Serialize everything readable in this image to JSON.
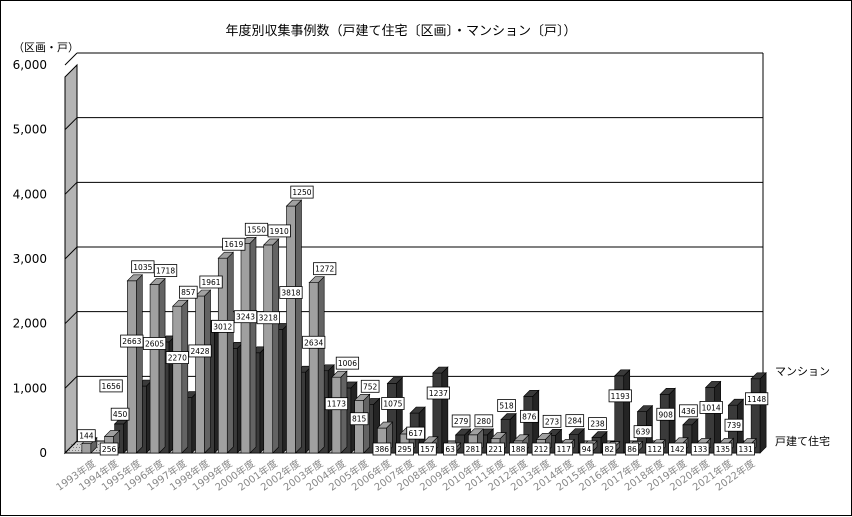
{
  "chart_data": {
    "type": "bar",
    "title": "年度別収集事例数（戸建て住宅〔区画〕・マンション〔戸〕）",
    "ylabel": "（区画・戸）",
    "ylim": [
      0,
      6000
    ],
    "yticks": [
      "0",
      "1,000",
      "2,000",
      "3,000",
      "4,000",
      "5,000",
      "6,000"
    ],
    "grid": true,
    "legend_position": "right",
    "categories": [
      "1993年度",
      "1994年度",
      "1995年度",
      "1996年度",
      "1997年度",
      "1998年度",
      "1999年度",
      "2000年度",
      "2001年度",
      "2002年度",
      "2003年度",
      "2004年度",
      "2005年度",
      "2006年度",
      "2007年度",
      "2008年度",
      "2009年度",
      "2010年度",
      "2011年度",
      "2012年度",
      "2013年度",
      "2014年度",
      "2015年度",
      "2016年度",
      "2017年度",
      "2018年度",
      "2019年度",
      "2020年度",
      "2021年度",
      "2022年度"
    ],
    "series": [
      {
        "name": "戸建て住宅",
        "values": [
          144,
          256,
          2663,
          2605,
          2270,
          2428,
          3012,
          3243,
          3218,
          3818,
          2634,
          1173,
          815,
          386,
          295,
          157,
          63,
          281,
          221,
          188,
          212,
          117,
          94,
          82,
          86,
          112,
          142,
          133,
          135,
          131
        ],
        "color": "#a0a0a0"
      },
      {
        "name": "マンション",
        "values": [
          0,
          450,
          1035,
          1718,
          857,
          1961,
          1619,
          1550,
          1910,
          1250,
          1272,
          1006,
          752,
          1075,
          617,
          1237,
          279,
          280,
          518,
          876,
          273,
          284,
          238,
          1193,
          639,
          908,
          436,
          1014,
          739,
          1148
        ],
        "color": "#3a3a3a"
      }
    ],
    "data_labels": [
      {
        "fore": "144",
        "back": ""
      },
      {
        "fore": "256",
        "back": "450",
        "extra": "1656"
      },
      {
        "fore": "2663",
        "back": "1035"
      },
      {
        "fore": "2605",
        "back": "1718"
      },
      {
        "fore": "2270",
        "back": "857"
      },
      {
        "fore": "2428",
        "back": "1961"
      },
      {
        "fore": "3012",
        "back": "1619"
      },
      {
        "fore": "3243",
        "back": "1550"
      },
      {
        "fore": "3218",
        "back": "1910"
      },
      {
        "fore": "3818",
        "back": "1250"
      },
      {
        "fore": "2634",
        "back": "1272"
      },
      {
        "fore": "1173",
        "back": "1006"
      },
      {
        "fore": "815",
        "back": "752"
      },
      {
        "fore": "386",
        "back": "1075"
      },
      {
        "fore": "295",
        "back": "617"
      },
      {
        "fore": "157",
        "back": "1237"
      },
      {
        "fore": "63",
        "back": "279"
      },
      {
        "fore": "281",
        "back": "280"
      },
      {
        "fore": "221",
        "back": "518"
      },
      {
        "fore": "188",
        "back": "876"
      },
      {
        "fore": "212",
        "back": "273"
      },
      {
        "fore": "117",
        "back": "284"
      },
      {
        "fore": "94",
        "back": "238"
      },
      {
        "fore": "82",
        "back": "1193"
      },
      {
        "fore": "86",
        "back": "639"
      },
      {
        "fore": "112",
        "back": "908"
      },
      {
        "fore": "142",
        "back": "436"
      },
      {
        "fore": "133",
        "back": "1014"
      },
      {
        "fore": "135",
        "back": "739"
      },
      {
        "fore": "131",
        "back": "1148"
      }
    ]
  }
}
